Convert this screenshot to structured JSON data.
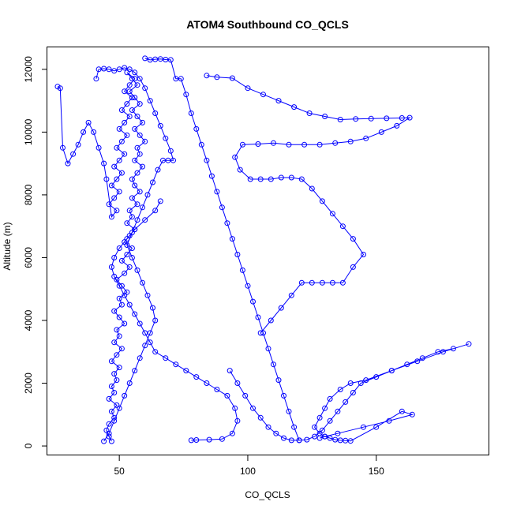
{
  "chart_data": {
    "type": "scatter",
    "title": "ATOM4 Southbound CO_QCLS",
    "xlabel": "CO_QCLS",
    "ylabel": "Altitude (m)",
    "xlim": [
      22,
      194
    ],
    "ylim": [
      -300,
      12700
    ],
    "xticks": [
      50,
      100,
      150
    ],
    "yticks": [
      0,
      2000,
      4000,
      6000,
      8000,
      10000,
      12000
    ],
    "grid": false,
    "series_color": "#0000FF",
    "series": [
      {
        "x": [
          47,
          46,
          45,
          46,
          48,
          47,
          49,
          46,
          48,
          47,
          49,
          48,
          50,
          47,
          49,
          51,
          48,
          50,
          49,
          52,
          50,
          48,
          51,
          50,
          53,
          51,
          49,
          52,
          54,
          51,
          53,
          55,
          52,
          54,
          56,
          53,
          55,
          54,
          57,
          55,
          58,
          56,
          55,
          57,
          59,
          56,
          58,
          57,
          60,
          58,
          56,
          59,
          57,
          55,
          58,
          56,
          54,
          57,
          55,
          53,
          56,
          54,
          52,
          55,
          53,
          51,
          54,
          52,
          50,
          53,
          51,
          49,
          52,
          50,
          48,
          51,
          49,
          47,
          50,
          48,
          46,
          49,
          47,
          45,
          44,
          42,
          40,
          38,
          36,
          34,
          32,
          30,
          28,
          27,
          26
        ],
        "y": [
          150,
          300,
          500,
          700,
          900,
          1100,
          1300,
          1500,
          1700,
          1900,
          2100,
          2300,
          2500,
          2700,
          2900,
          3100,
          3300,
          3500,
          3700,
          3900,
          4100,
          4300,
          4500,
          4700,
          4900,
          5100,
          5300,
          5500,
          5700,
          5900,
          6100,
          6300,
          6500,
          6700,
          6900,
          7100,
          7300,
          7500,
          7700,
          7900,
          8100,
          8300,
          8500,
          8700,
          8900,
          9100,
          9300,
          9500,
          9700,
          9900,
          10100,
          10300,
          10500,
          10700,
          10900,
          11100,
          11300,
          11500,
          11700,
          11900,
          11700,
          11500,
          11300,
          11100,
          10900,
          10700,
          10500,
          10300,
          10100,
          9900,
          9700,
          9500,
          9300,
          9100,
          8900,
          8700,
          8500,
          8300,
          8100,
          7900,
          7700,
          7500,
          7300,
          8500,
          9000,
          9500,
          10000,
          10300,
          10000,
          9600,
          9300,
          9000,
          9500,
          11400,
          11450
        ]
      },
      {
        "x": [
          44,
          46,
          48,
          50,
          52,
          54,
          56,
          58,
          60,
          62,
          64,
          63,
          61,
          59,
          57,
          55,
          53,
          55,
          57,
          59,
          61,
          63,
          65,
          67,
          69,
          71,
          70,
          68,
          66,
          64,
          62,
          60,
          58,
          56,
          54,
          52,
          50,
          48,
          46,
          44,
          42,
          41
        ],
        "y": [
          150,
          400,
          800,
          1200,
          1600,
          2000,
          2400,
          2800,
          3200,
          3600,
          4000,
          4400,
          4800,
          5200,
          5600,
          6000,
          6400,
          6800,
          7200,
          7600,
          8000,
          8400,
          8800,
          9100,
          9100,
          9100,
          9400,
          9800,
          10200,
          10600,
          11000,
          11400,
          11700,
          11900,
          12000,
          12050,
          12000,
          11950,
          12000,
          12020,
          12000,
          11700
        ]
      },
      {
        "x": [
          60,
          62,
          64,
          66,
          68,
          70,
          72,
          74,
          76,
          78,
          80,
          82,
          84,
          86,
          88,
          90,
          92,
          94,
          96,
          98,
          100,
          102,
          104,
          106,
          108,
          110,
          112,
          114,
          116,
          118,
          120
        ],
        "y": [
          12350,
          12300,
          12320,
          12330,
          12310,
          12300,
          11700,
          11700,
          11200,
          10600,
          10100,
          9600,
          9100,
          8600,
          8100,
          7600,
          7100,
          6600,
          6100,
          5600,
          5100,
          4600,
          4100,
          3600,
          3100,
          2600,
          2100,
          1600,
          1100,
          600,
          180
        ]
      },
      {
        "x": [
          84,
          88,
          94,
          100,
          106,
          112,
          118,
          124,
          130,
          136,
          142,
          148,
          154,
          160,
          163,
          158,
          152,
          146,
          140,
          134,
          128,
          122,
          116,
          110,
          104,
          98,
          95,
          97,
          101,
          105,
          109,
          113,
          117,
          121,
          125,
          129,
          133,
          137,
          141,
          145,
          141,
          137,
          133,
          129,
          125,
          121,
          117,
          113,
          109,
          105
        ],
        "y": [
          11800,
          11750,
          11720,
          11400,
          11200,
          11000,
          10800,
          10600,
          10500,
          10400,
          10420,
          10430,
          10440,
          10450,
          10460,
          10200,
          10000,
          9800,
          9700,
          9650,
          9600,
          9600,
          9600,
          9650,
          9620,
          9600,
          9200,
          8800,
          8500,
          8500,
          8500,
          8550,
          8550,
          8500,
          8200,
          7800,
          7400,
          7000,
          6600,
          6100,
          5700,
          5200,
          5200,
          5200,
          5200,
          5200,
          4800,
          4400,
          4000,
          3600
        ]
      },
      {
        "x": [
          93,
          96,
          99,
          102,
          105,
          108,
          111,
          114,
          117,
          120,
          123,
          126,
          129,
          132,
          135,
          138,
          141,
          144,
          150,
          156,
          162,
          168,
          174,
          180,
          186,
          176,
          166,
          156,
          146,
          140,
          136,
          132,
          130,
          128,
          126,
          128,
          130,
          132,
          134,
          136,
          138,
          140,
          150,
          160,
          164,
          155,
          145,
          135,
          130,
          128
        ],
        "y": [
          2400,
          2000,
          1600,
          1200,
          900,
          600,
          400,
          250,
          180,
          180,
          200,
          300,
          500,
          800,
          1100,
          1400,
          1700,
          2000,
          2200,
          2400,
          2600,
          2800,
          3000,
          3100,
          3250,
          3000,
          2700,
          2400,
          2100,
          2000,
          1800,
          1500,
          1200,
          900,
          600,
          400,
          300,
          250,
          200,
          180,
          170,
          160,
          600,
          1100,
          1000,
          800,
          600,
          400,
          300,
          250
        ]
      },
      {
        "x": [
          78,
          80,
          85,
          90,
          94,
          96,
          95,
          92,
          88,
          84,
          80,
          76,
          72,
          68,
          64,
          62,
          60,
          58,
          56,
          54,
          52,
          50,
          48,
          47,
          48,
          50,
          53,
          56,
          60,
          64,
          66
        ],
        "y": [
          180,
          190,
          200,
          220,
          400,
          800,
          1200,
          1600,
          1800,
          2000,
          2200,
          2400,
          2600,
          2800,
          3000,
          3300,
          3600,
          3900,
          4200,
          4500,
          4800,
          5100,
          5400,
          5700,
          6000,
          6300,
          6600,
          6900,
          7200,
          7500,
          7800
        ]
      }
    ]
  }
}
